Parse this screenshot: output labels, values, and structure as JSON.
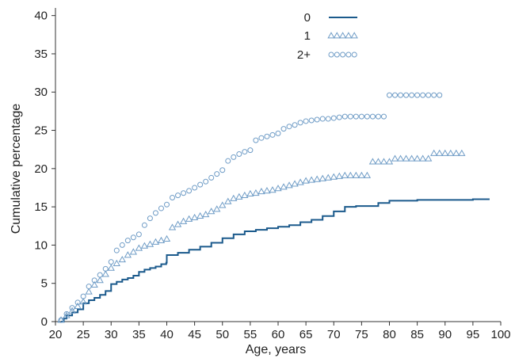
{
  "chart_data": {
    "type": "line",
    "title": "",
    "xlabel": "Age, years",
    "ylabel": "Cumulative percentage",
    "xlim": [
      20,
      100
    ],
    "ylim": [
      0,
      41
    ],
    "xticks": [
      20,
      25,
      30,
      35,
      40,
      45,
      50,
      55,
      60,
      65,
      70,
      75,
      80,
      85,
      90,
      95,
      100
    ],
    "xtick_labels": [
      "20",
      "25",
      "30",
      "35",
      "40",
      "45",
      "50",
      "55",
      "60",
      "65",
      "70",
      "75",
      "80",
      "85",
      "90",
      "95",
      "100"
    ],
    "yticks": [
      0,
      5,
      10,
      15,
      20,
      25,
      30,
      35,
      40
    ],
    "ytick_labels": [
      "0",
      "5",
      "10",
      "15",
      "20",
      "25",
      "30",
      "35",
      "40"
    ],
    "grid": false,
    "legend": "top-center",
    "series": [
      {
        "name": "0",
        "style": "step-line",
        "color": "#1b5a8c",
        "x": [
          21,
          21.5,
          22,
          23,
          24,
          25,
          26,
          27,
          28,
          29,
          30,
          31,
          32,
          33,
          34,
          35,
          36,
          37,
          38,
          39,
          39.9,
          40,
          42,
          44,
          46,
          48,
          50,
          52,
          54,
          56,
          58,
          60,
          62,
          64,
          66,
          68,
          70,
          72,
          74,
          76,
          78,
          80,
          85,
          90,
          95,
          98
        ],
        "y": [
          0,
          0.4,
          0.8,
          1.2,
          1.6,
          2.4,
          2.8,
          3.1,
          3.5,
          4.0,
          4.9,
          5.2,
          5.5,
          5.7,
          6.0,
          6.5,
          6.8,
          7.0,
          7.2,
          7.5,
          7.7,
          8.7,
          9.0,
          9.4,
          9.8,
          10.3,
          10.9,
          11.4,
          11.8,
          12.0,
          12.2,
          12.4,
          12.6,
          13.0,
          13.3,
          13.8,
          14.4,
          15.0,
          15.1,
          15.1,
          15.5,
          15.8,
          15.9,
          15.9,
          16.0,
          16.0
        ]
      },
      {
        "name": "1",
        "style": "triangle-markers",
        "color": "#6f9cc6",
        "x": [
          21,
          22,
          23,
          24,
          25,
          26,
          27,
          28,
          29,
          30,
          31,
          32,
          33,
          34,
          35,
          36,
          37,
          38,
          39,
          40,
          41,
          42,
          43,
          44,
          45,
          46,
          47,
          48,
          49,
          50,
          51,
          52,
          53,
          54,
          55,
          56,
          57,
          58,
          59,
          60,
          61,
          62,
          63,
          64,
          65,
          66,
          67,
          68,
          69,
          70,
          71,
          72,
          73,
          74,
          75,
          76,
          77,
          78,
          79,
          80,
          81,
          82,
          83,
          84,
          85,
          86,
          87,
          88,
          89,
          90,
          91,
          92,
          93
        ],
        "y": [
          0.2,
          0.8,
          1.4,
          2.0,
          2.6,
          3.9,
          4.8,
          5.4,
          6.2,
          7.0,
          7.6,
          8.1,
          8.7,
          9.1,
          9.6,
          9.9,
          10.1,
          10.4,
          10.6,
          10.8,
          12.3,
          12.7,
          13.1,
          13.4,
          13.6,
          13.8,
          14.0,
          14.4,
          14.7,
          15.2,
          15.7,
          16.1,
          16.3,
          16.5,
          16.7,
          16.8,
          17.0,
          17.1,
          17.2,
          17.4,
          17.6,
          17.8,
          18.0,
          18.2,
          18.4,
          18.5,
          18.6,
          18.7,
          18.8,
          18.9,
          19.0,
          19.1,
          19.1,
          19.1,
          19.1,
          19.1,
          20.9,
          20.9,
          20.9,
          20.9,
          21.3,
          21.3,
          21.3,
          21.3,
          21.3,
          21.3,
          21.3,
          22.0,
          22.0,
          22.0,
          22.0,
          22.0,
          22.0
        ]
      },
      {
        "name": "2+",
        "style": "circle-markers",
        "color": "#6f9cc6",
        "x": [
          21,
          22,
          23,
          24,
          25,
          26,
          27,
          28,
          29,
          30,
          31,
          32,
          33,
          34,
          35,
          36,
          37,
          38,
          39,
          40,
          41,
          42,
          43,
          44,
          45,
          46,
          47,
          48,
          49,
          50,
          51,
          52,
          53,
          54,
          55,
          56,
          57,
          58,
          59,
          60,
          61,
          62,
          63,
          64,
          65,
          66,
          67,
          68,
          69,
          70,
          71,
          72,
          73,
          74,
          75,
          76,
          77,
          78,
          79,
          80,
          81,
          82,
          83,
          84,
          85,
          86,
          87,
          88,
          89
        ],
        "y": [
          0.2,
          1.0,
          1.8,
          2.5,
          3.3,
          4.6,
          5.4,
          6.1,
          6.9,
          7.8,
          9.3,
          10.0,
          10.6,
          11.0,
          11.4,
          12.6,
          13.5,
          14.2,
          14.8,
          15.3,
          16.2,
          16.5,
          16.8,
          17.1,
          17.5,
          17.9,
          18.3,
          18.8,
          19.3,
          19.8,
          21.0,
          21.5,
          21.9,
          22.2,
          22.4,
          23.7,
          24.0,
          24.2,
          24.4,
          24.6,
          25.2,
          25.5,
          25.7,
          26.0,
          26.2,
          26.3,
          26.4,
          26.5,
          26.5,
          26.6,
          26.7,
          26.8,
          26.8,
          26.8,
          26.8,
          26.8,
          26.8,
          26.8,
          26.8,
          29.6,
          29.6,
          29.6,
          29.6,
          29.6,
          29.6,
          29.6,
          29.6,
          29.6,
          29.6
        ]
      }
    ]
  }
}
